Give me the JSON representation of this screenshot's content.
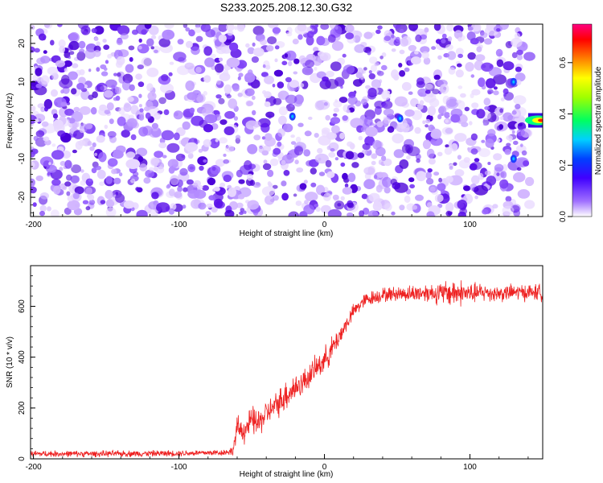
{
  "title": "S233.2025.208.12.30.G32",
  "chart_data": [
    {
      "type": "heatmap",
      "xlabel": "Height of straight line (km)",
      "ylabel": "Frequency (Hz)",
      "xlim": [
        -202,
        150
      ],
      "ylim": [
        -25,
        25
      ],
      "xticks": [
        -200,
        -100,
        0,
        100
      ],
      "yticks": [
        -20,
        -10,
        0,
        10,
        20
      ],
      "grid": false,
      "colorbar": {
        "label": "Normalized spectral amplitude",
        "range": [
          0.0,
          0.75
        ],
        "ticks": [
          0.0,
          0.2,
          0.4,
          0.6
        ]
      },
      "description_points": [
        {
          "x": 140,
          "y": 0,
          "value": 0.75
        },
        {
          "x": -22,
          "y": 1,
          "value": 0.25
        },
        {
          "x": 52,
          "y": 0.5,
          "value": 0.25
        },
        {
          "x": 130,
          "y": 10,
          "value": 0.2
        },
        {
          "x": 130,
          "y": -10,
          "value": 0.2
        }
      ]
    },
    {
      "type": "line",
      "xlabel": "Height of straight line (km)",
      "ylabel": "SNR (10 * v/v)",
      "xlim": [
        -202,
        150
      ],
      "ylim": [
        0,
        760
      ],
      "xticks": [
        -200,
        -100,
        0,
        100
      ],
      "yticks": [
        0,
        200,
        400,
        600
      ],
      "grid": false,
      "series": [
        {
          "color": "#ee2222",
          "x": [
            -202,
            -150,
            -100,
            -70,
            -63,
            -60,
            -55,
            -50,
            -45,
            -40,
            -35,
            -30,
            -25,
            -20,
            -15,
            -10,
            -5,
            0,
            5,
            10,
            15,
            20,
            25,
            30,
            40,
            50,
            60,
            70,
            80,
            90,
            100,
            110,
            120,
            130,
            140,
            150
          ],
          "values": [
            20,
            20,
            22,
            25,
            30,
            120,
            110,
            150,
            140,
            180,
            200,
            230,
            260,
            280,
            300,
            330,
            360,
            390,
            430,
            480,
            530,
            580,
            610,
            630,
            645,
            650,
            650,
            655,
            650,
            655,
            650,
            655,
            650,
            655,
            655,
            655
          ],
          "noise_amplitude": [
            15,
            15,
            15,
            15,
            20,
            60,
            60,
            70,
            70,
            60,
            60,
            70,
            80,
            70,
            60,
            60,
            60,
            60,
            60,
            50,
            40,
            35,
            35,
            35,
            35,
            35,
            40,
            45,
            55,
            70,
            50,
            45,
            40,
            40,
            40,
            40
          ]
        }
      ]
    }
  ]
}
